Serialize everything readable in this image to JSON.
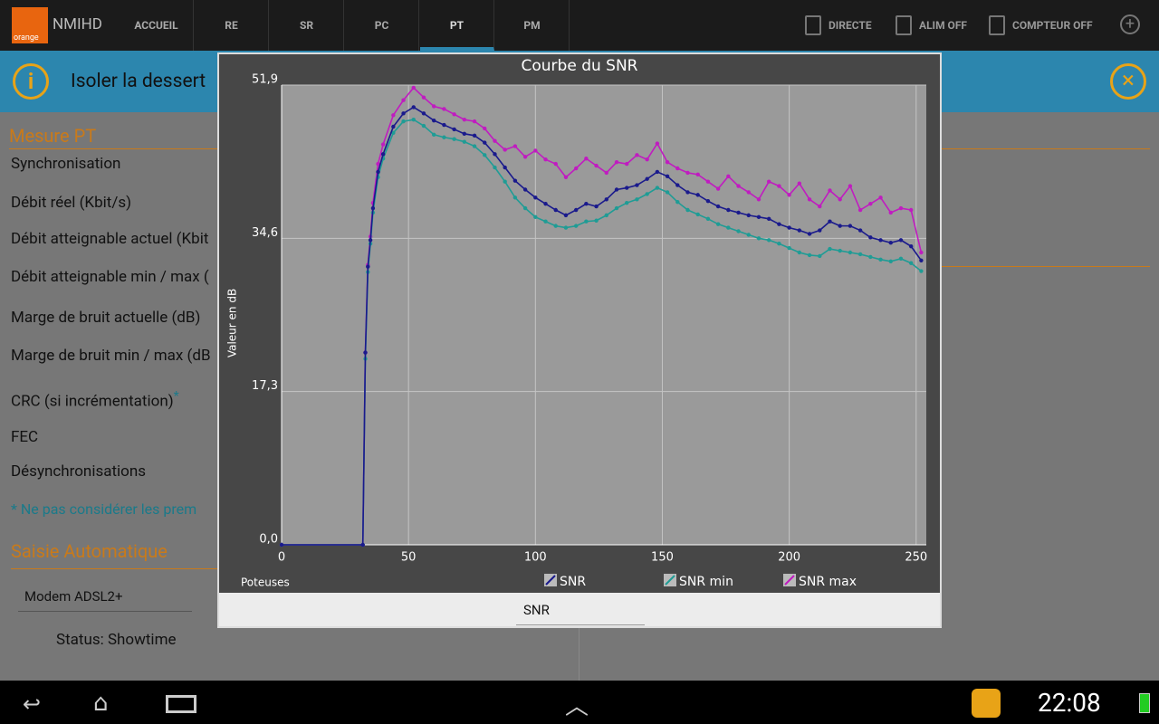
{
  "app_bar": {
    "logo": "orange",
    "title": "NMIHD",
    "tabs": [
      "ACCUEIL",
      "RE",
      "SR",
      "PC",
      "PT",
      "PM"
    ],
    "selected_tab": "PT",
    "actions": [
      "DIRECTE",
      "ALIM OFF",
      "COMPTEUR OFF"
    ]
  },
  "banner": {
    "text": "Isoler la dessert"
  },
  "form": {
    "section": "Mesure PT",
    "labels": [
      "Synchronisation",
      "Débit réel (Kbit/s)",
      "Débit atteignable actuel (Kbit",
      "Débit atteignable min / max (",
      "Marge de bruit actuelle (dB)",
      "Marge de bruit min / max (dB",
      "CRC (si incrémentation)",
      "FEC",
      "Désynchronisations"
    ],
    "footnote_mark": "*",
    "note": "* Ne pas considérer les prem",
    "section2": "Saisie Automatique",
    "modem": "Modem ADSL2+",
    "status": "Status: Showtime"
  },
  "chart_data": {
    "type": "line",
    "title": "Courbe du SNR",
    "x_label": "Poteuses",
    "y_label": "Valeur en dB",
    "x": [
      0,
      32,
      33,
      34,
      35,
      36,
      38,
      40,
      44,
      48,
      52,
      56,
      60,
      64,
      68,
      72,
      76,
      80,
      84,
      88,
      92,
      96,
      100,
      104,
      108,
      112,
      116,
      120,
      124,
      128,
      132,
      136,
      140,
      144,
      148,
      152,
      156,
      160,
      164,
      168,
      172,
      176,
      180,
      184,
      188,
      192,
      196,
      200,
      204,
      208,
      212,
      216,
      220,
      224,
      228,
      232,
      236,
      240,
      244,
      248,
      252
    ],
    "series": [
      {
        "name": "SNR",
        "color": "#1a1a8c",
        "values": [
          0,
          0,
          21.7,
          31.4,
          34.4,
          38.0,
          42.1,
          44.1,
          47.2,
          48.7,
          49.4,
          48.7,
          47.9,
          47.4,
          46.9,
          46.4,
          46.2,
          45.4,
          44.1,
          42.6,
          41.1,
          40.1,
          39.2,
          38.5,
          37.8,
          37.2,
          37.8,
          38.5,
          38.2,
          39.0,
          40.1,
          40.3,
          40.6,
          41.3,
          42.1,
          41.6,
          40.6,
          39.8,
          39.5,
          38.8,
          38.2,
          37.8,
          37.5,
          37.2,
          37.0,
          36.8,
          36.2,
          35.8,
          35.5,
          35.1,
          35.5,
          36.5,
          36.0,
          36.0,
          35.5,
          34.7,
          34.4,
          34.1,
          34.4,
          33.7,
          32.1
        ]
      },
      {
        "name": "SNR min",
        "color": "#1f9c95",
        "values": [
          0,
          0,
          21.0,
          30.8,
          34.0,
          37.5,
          41.5,
          43.6,
          46.5,
          47.8,
          48.0,
          47.3,
          46.3,
          46.0,
          45.8,
          45.5,
          45.0,
          44.0,
          42.6,
          41.0,
          39.2,
          38.0,
          37.0,
          36.5,
          36.0,
          35.8,
          36.0,
          36.5,
          36.6,
          37.2,
          38.0,
          38.6,
          39.0,
          39.6,
          40.3,
          39.8,
          38.7,
          37.8,
          37.3,
          36.8,
          36.2,
          35.8,
          35.4,
          35.0,
          34.6,
          34.4,
          34.0,
          33.5,
          33.0,
          32.7,
          32.6,
          33.4,
          33.2,
          33.0,
          32.8,
          32.5,
          32.2,
          32.0,
          32.3,
          31.8,
          30.9
        ]
      },
      {
        "name": "SNR max",
        "color": "#c01cc0",
        "values": [
          0,
          0,
          21.7,
          31.6,
          34.8,
          38.6,
          43.0,
          45.2,
          48.5,
          50.2,
          51.6,
          50.5,
          49.5,
          49.2,
          48.6,
          48.0,
          47.8,
          47.0,
          45.6,
          44.6,
          45.0,
          43.8,
          44.5,
          43.5,
          43.0,
          41.5,
          42.5,
          43.6,
          42.8,
          42.0,
          43.2,
          43.0,
          44.0,
          43.5,
          45.3,
          43.2,
          42.5,
          42.0,
          41.8,
          41.0,
          40.2,
          41.6,
          40.5,
          39.8,
          39.0,
          41.0,
          40.5,
          39.5,
          40.8,
          39.0,
          38.2,
          40.0,
          39.0,
          40.5,
          37.8,
          38.5,
          39.2,
          37.5,
          38.0,
          37.8,
          33.0
        ]
      }
    ],
    "xlim": [
      0,
      254
    ],
    "xticks": [
      0,
      50,
      100,
      150,
      200,
      250
    ],
    "ylim": [
      0,
      51.9
    ],
    "yticks": [
      {
        "value": 0,
        "label": "0,0"
      },
      {
        "value": 17.3,
        "label": "17,3"
      },
      {
        "value": 34.6,
        "label": "34,6"
      },
      {
        "value": 51.9,
        "label": "51,9"
      }
    ],
    "grid": true
  },
  "dialog": {
    "spinner": "SNR"
  },
  "status_bar": {
    "time": "22:08"
  }
}
